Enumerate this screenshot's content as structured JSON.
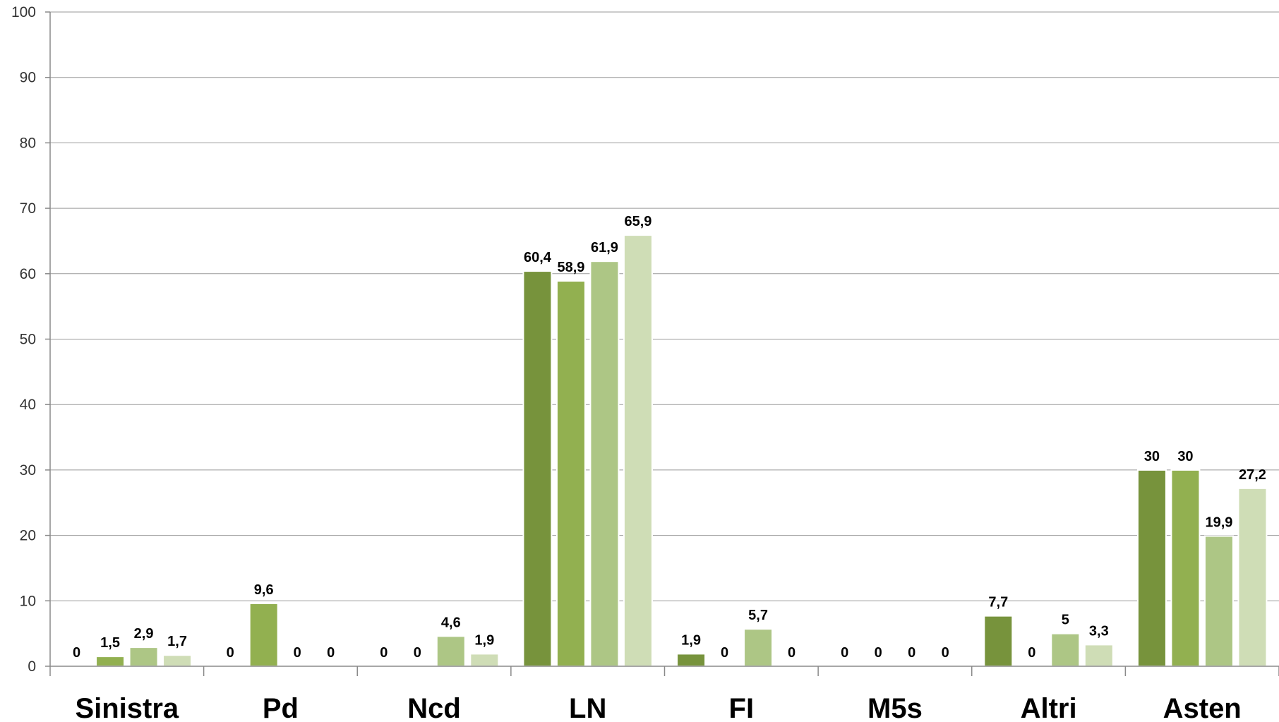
{
  "chart_data": {
    "type": "bar",
    "title": "",
    "xlabel": "",
    "ylabel": "",
    "ylim": [
      0,
      100
    ],
    "yticks": [
      0,
      10,
      20,
      30,
      40,
      50,
      60,
      70,
      80,
      90,
      100
    ],
    "grid": true,
    "legend": "none",
    "categories": [
      "Sinistra",
      "Pd",
      "Ncd",
      "LN",
      "FI",
      "M5s",
      "Altri",
      "Asten"
    ],
    "series": [
      {
        "color": "#77933c",
        "values": [
          0,
          0,
          0,
          60.4,
          1.9,
          0,
          7.7,
          30
        ],
        "labels": [
          "0",
          "0",
          "0",
          "60,4",
          "1,9",
          "0",
          "7,7",
          "30"
        ]
      },
      {
        "color": "#92b050",
        "values": [
          1.5,
          9.6,
          0,
          58.9,
          0,
          0,
          0,
          30
        ],
        "labels": [
          "1,5",
          "9,6",
          "0",
          "58,9",
          "0",
          "0",
          "0",
          "30"
        ]
      },
      {
        "color": "#adc685",
        "values": [
          2.9,
          0,
          4.6,
          61.9,
          5.7,
          0,
          5,
          19.9
        ],
        "labels": [
          "2,9",
          "0",
          "4,6",
          "61,9",
          "5,7",
          "0",
          "5",
          "19,9"
        ]
      },
      {
        "color": "#cfddb6",
        "values": [
          1.7,
          0,
          1.9,
          65.9,
          0,
          0,
          3.3,
          27.2
        ],
        "labels": [
          "1,7",
          "0",
          "1,9",
          "65,9",
          "0",
          "0",
          "3,3",
          "27,2"
        ]
      }
    ]
  }
}
